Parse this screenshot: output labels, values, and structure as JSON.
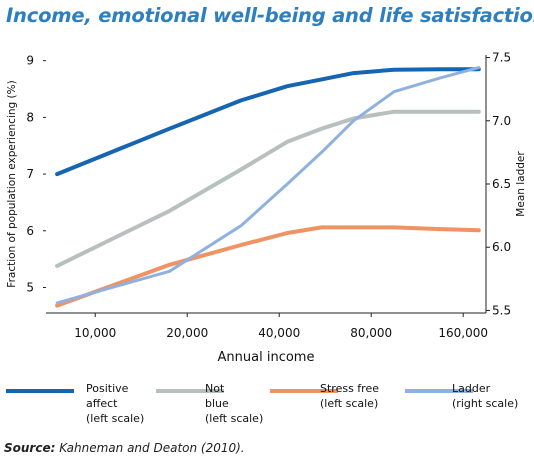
{
  "chart_data": {
    "type": "line",
    "title": "Income, emotional well-being and life satisfaction",
    "xlabel": "Annual income",
    "ylabel_left": "Fraction of population experiencing (%)",
    "ylabel_right": "Mean ladder",
    "x_scale": "log",
    "x": [
      7500,
      17500,
      30000,
      42500,
      55000,
      70000,
      95000,
      135000,
      180000
    ],
    "x_ticks": [
      10000,
      20000,
      40000,
      80000,
      160000
    ],
    "x_tick_labels": [
      "10,000",
      "20,000",
      "40,000",
      "80,000",
      "160,000"
    ],
    "xlim": [
      6900,
      190000
    ],
    "ylim_left": [
      4.55,
      9.1
    ],
    "y_ticks_left": [
      5,
      6,
      7,
      8,
      9
    ],
    "y_tick_labels_left": [
      "5",
      "6",
      "7",
      "8",
      "9"
    ],
    "ylim_right": [
      5.48,
      7.52
    ],
    "y_ticks_right": [
      5.5,
      6.0,
      6.5,
      7.0,
      7.5
    ],
    "y_tick_labels_right": [
      "5.5",
      "6.0",
      "6.5",
      "7.0",
      "7.5"
    ],
    "grid": false,
    "legend_position": "bottom",
    "series": [
      {
        "name": "Positive affect (left scale)",
        "legend_lines": [
          "Positive",
          "affect",
          "(left scale)"
        ],
        "axis": "left",
        "color": "#1565b2",
        "width": 4,
        "values": [
          7.0,
          7.8,
          8.3,
          8.55,
          8.67,
          8.78,
          8.84,
          8.85,
          8.85
        ]
      },
      {
        "name": "Not blue (left scale)",
        "legend_lines": [
          "Not",
          "blue",
          "(left scale)"
        ],
        "axis": "left",
        "color": "#b7bfbf",
        "width": 4,
        "values": [
          5.38,
          6.35,
          7.08,
          7.57,
          7.8,
          7.98,
          8.1,
          8.1,
          8.1
        ]
      },
      {
        "name": "Stress free (left scale)",
        "legend_lines": [
          "Stress free",
          "(left scale)"
        ],
        "axis": "left",
        "color": "#ef9264",
        "width": 4,
        "values": [
          4.68,
          5.4,
          5.75,
          5.96,
          6.06,
          6.06,
          6.06,
          6.03,
          6.01
        ]
      },
      {
        "name": "Ladder (right scale)",
        "legend_lines": [
          "Ladder",
          "(right scale)"
        ],
        "axis": "right",
        "color": "#8fb1df",
        "width": 3,
        "values": [
          5.56,
          5.81,
          6.17,
          6.5,
          6.75,
          7.0,
          7.23,
          7.34,
          7.42
        ]
      }
    ]
  },
  "source": {
    "label": "Source:",
    "text": " Kahneman and Deaton (2010)."
  }
}
